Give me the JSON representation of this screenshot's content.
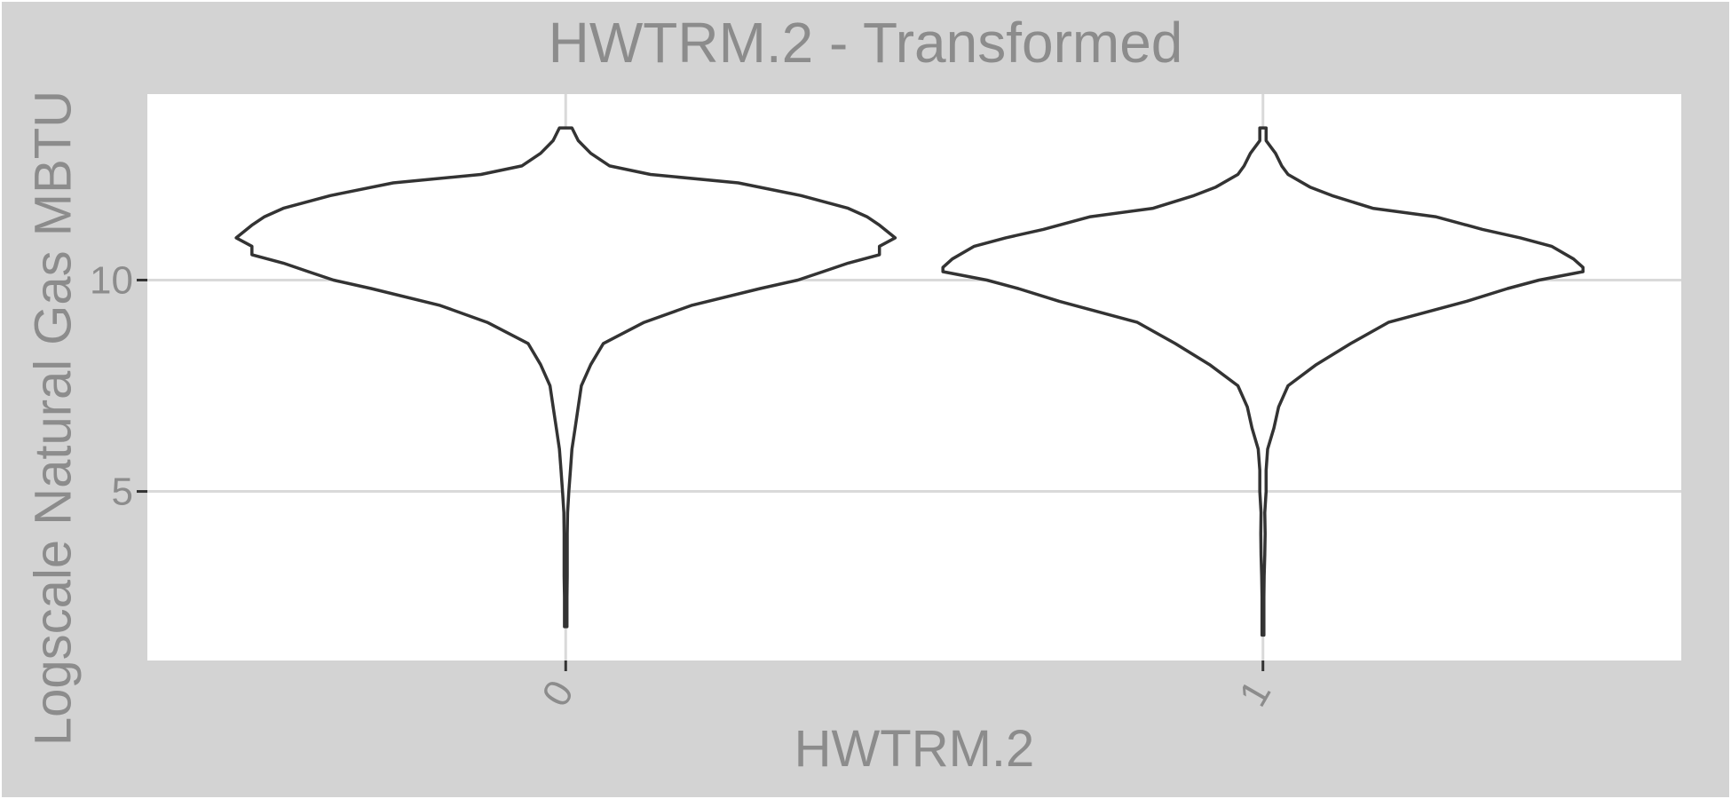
{
  "chart_data": {
    "type": "violin",
    "title": "HWTRM.2 - Transformed",
    "xlabel": "HWTRM.2",
    "ylabel": "Logscale Natural Gas MBTU",
    "categories": [
      "0",
      "1"
    ],
    "y_ticks": [
      5,
      10
    ],
    "y_tick_labels": [
      "5",
      "10"
    ],
    "ylim": [
      1.0,
      14.4
    ],
    "grid": true,
    "colors": {
      "outline": "#333333",
      "panel": "#ffffff",
      "background": "#d3d3d3",
      "grid": "#d9d9d9",
      "text": "#8c8c8c"
    },
    "series": [
      {
        "category": "0",
        "profile": [
          [
            13.6,
            0.02
          ],
          [
            13.3,
            0.04
          ],
          [
            13.0,
            0.08
          ],
          [
            12.7,
            0.14
          ],
          [
            12.5,
            0.27
          ],
          [
            12.3,
            0.55
          ],
          [
            12.0,
            0.75
          ],
          [
            11.7,
            0.9
          ],
          [
            11.5,
            0.96
          ],
          [
            11.3,
            1.0
          ],
          [
            11.0,
            1.05
          ],
          [
            10.8,
            1.0
          ],
          [
            10.6,
            1.0
          ],
          [
            10.4,
            0.9
          ],
          [
            10.2,
            0.82
          ],
          [
            10.0,
            0.74
          ],
          [
            9.8,
            0.62
          ],
          [
            9.4,
            0.4
          ],
          [
            9.0,
            0.25
          ],
          [
            8.5,
            0.12
          ],
          [
            8.0,
            0.08
          ],
          [
            7.5,
            0.05
          ],
          [
            7.0,
            0.04
          ],
          [
            6.5,
            0.03
          ],
          [
            6.0,
            0.02
          ],
          [
            5.5,
            0.015
          ],
          [
            5.0,
            0.01
          ],
          [
            4.5,
            0.006
          ],
          [
            4.0,
            0.005
          ],
          [
            3.0,
            0.005
          ],
          [
            2.5,
            0.004
          ],
          [
            1.8,
            0.004
          ]
        ]
      },
      {
        "category": "1",
        "profile": [
          [
            13.6,
            0.01
          ],
          [
            13.3,
            0.01
          ],
          [
            13.0,
            0.04
          ],
          [
            12.7,
            0.06
          ],
          [
            12.5,
            0.08
          ],
          [
            12.2,
            0.15
          ],
          [
            12.0,
            0.22
          ],
          [
            11.7,
            0.35
          ],
          [
            11.5,
            0.55
          ],
          [
            11.2,
            0.7
          ],
          [
            11.0,
            0.82
          ],
          [
            10.8,
            0.92
          ],
          [
            10.5,
            0.99
          ],
          [
            10.3,
            1.02
          ],
          [
            10.2,
            1.02
          ],
          [
            10.0,
            0.88
          ],
          [
            9.8,
            0.78
          ],
          [
            9.5,
            0.65
          ],
          [
            9.3,
            0.55
          ],
          [
            9.0,
            0.4
          ],
          [
            8.5,
            0.28
          ],
          [
            8.0,
            0.17
          ],
          [
            7.5,
            0.08
          ],
          [
            7.0,
            0.05
          ],
          [
            6.5,
            0.035
          ],
          [
            6.0,
            0.015
          ],
          [
            5.5,
            0.01
          ],
          [
            5.0,
            0.01
          ],
          [
            4.5,
            0.006
          ],
          [
            4.0,
            0.007
          ],
          [
            3.5,
            0.006
          ],
          [
            3.0,
            0.004
          ],
          [
            2.5,
            0.003
          ],
          [
            1.6,
            0.003
          ]
        ]
      }
    ]
  }
}
